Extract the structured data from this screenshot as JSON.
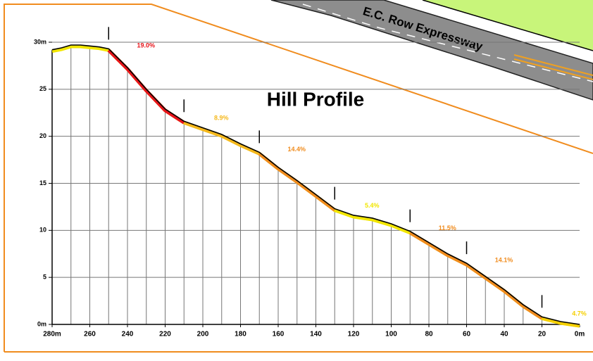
{
  "chart_data": {
    "type": "profile",
    "title": "Hill Profile",
    "road_label": "E.C. Row Expressway",
    "x": [
      280,
      275,
      270,
      265,
      260,
      255,
      250,
      240,
      230,
      220,
      210,
      200,
      190,
      180,
      170,
      160,
      150,
      140,
      130,
      120,
      110,
      100,
      90,
      80,
      70,
      60,
      50,
      40,
      30,
      20,
      10,
      0
    ],
    "values": [
      29.2,
      29.4,
      29.7,
      29.7,
      29.6,
      29.5,
      29.3,
      27.3,
      25.0,
      22.9,
      21.6,
      20.9,
      20.2,
      19.2,
      18.3,
      16.7,
      15.3,
      13.8,
      12.3,
      11.6,
      11.3,
      10.7,
      9.9,
      8.7,
      7.5,
      6.5,
      5.1,
      3.7,
      2.1,
      0.8,
      0.3,
      0
    ],
    "color": "#000000",
    "base_color": "#f2e600",
    "segments": {
      "starts": [
        250,
        210,
        170,
        130,
        90,
        60,
        20
      ],
      "ends": [
        210,
        170,
        130,
        90,
        60,
        20,
        0
      ],
      "values": [
        19.0,
        8.9,
        14.4,
        5.4,
        11.5,
        14.1,
        4.7
      ],
      "value_labels": [
        "19.0%",
        "8.9%",
        "14.4%",
        "5.4%",
        "11.5%",
        "14.1%",
        "4.7%"
      ],
      "colors": [
        "#e8151b",
        "#f5b81c",
        "#f08c1e",
        "#f2e600",
        "#f08c1e",
        "#f08c1e",
        "#f5d000"
      ]
    },
    "xlim": [
      280,
      0
    ],
    "ylim": [
      0,
      30
    ],
    "xticks": [
      {
        "value": 280,
        "label": "280m"
      },
      260,
      240,
      220,
      200,
      180,
      160,
      140,
      120,
      100,
      80,
      60,
      40,
      20,
      {
        "value": 0,
        "label": "0m"
      }
    ],
    "xminor": [
      270,
      250,
      230,
      210,
      190,
      170,
      150,
      130,
      110,
      90,
      70,
      50,
      30,
      10
    ],
    "yticks": [
      {
        "value": 0,
        "label": "0m"
      },
      5,
      10,
      15,
      20,
      25,
      {
        "value": 30,
        "label": "30m"
      }
    ],
    "grid": true
  }
}
